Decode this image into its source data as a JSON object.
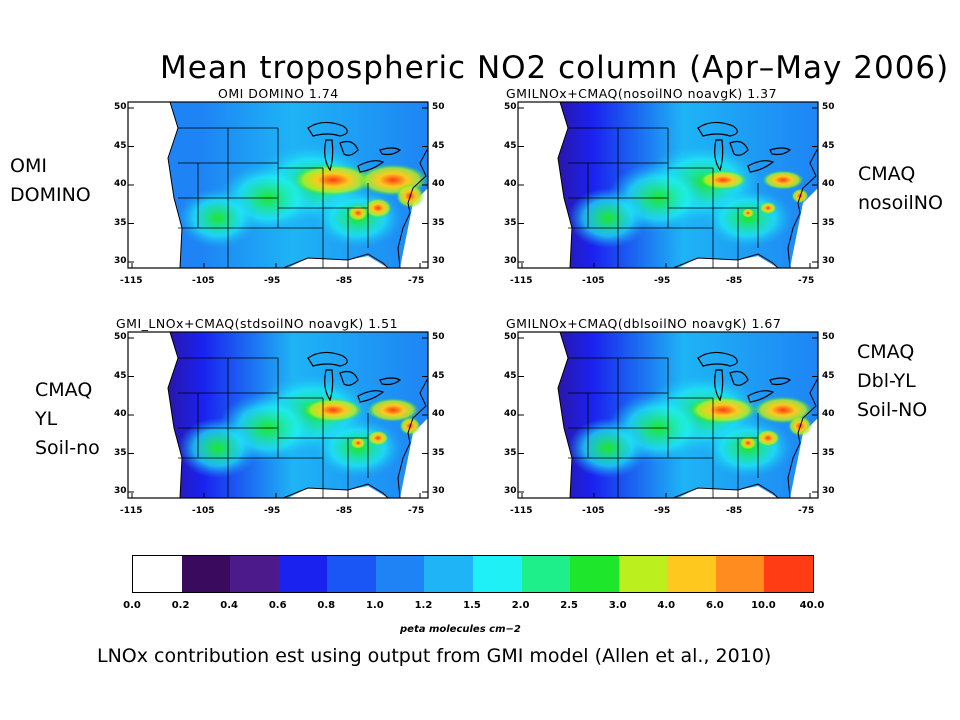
{
  "title": "Mean tropospheric NO2 column (Apr–May 2006)",
  "side_labels": {
    "top_left": "OMI\nDOMINO",
    "top_right": "CMAQ\nnosoilNO",
    "bottom_left": "CMAQ\nYL\nSoil-no",
    "bottom_right": "CMAQ\nDbl-YL\nSoil-NO"
  },
  "panels": [
    {
      "title": "OMI DOMINO  1.74",
      "mean": 1.74
    },
    {
      "title": "GMILNOx+CMAQ(nosoilNO  noavgK)  1.37",
      "mean": 1.37
    },
    {
      "title": "GMI_LNOx+CMAQ(stdsoilNO  noavgK)  1.51",
      "mean": 1.51
    },
    {
      "title": "GMILNOx+CMAQ(dblsoilNO  noavgK)  1.67",
      "mean": 1.67
    }
  ],
  "lat_ticks": [
    "50",
    "45",
    "40",
    "35",
    "30"
  ],
  "lon_ticks": [
    "-115",
    "-105",
    "-95",
    "-85",
    "-75"
  ],
  "colorbar": {
    "ticks": [
      "0.0",
      "0.2",
      "0.4",
      "0.6",
      "0.8",
      "1.0",
      "1.2",
      "1.5",
      "2.0",
      "2.5",
      "3.0",
      "4.0",
      "6.0",
      "10.0",
      "40.0"
    ],
    "colors": [
      "#ffffff",
      "#3a0a5e",
      "#4d1a8c",
      "#1a22f0",
      "#1a55f5",
      "#1e84f5",
      "#1eb4f5",
      "#1ef0f5",
      "#1eef8a",
      "#1ee62a",
      "#bcef1e",
      "#ffc81e",
      "#ff8c1e",
      "#ff3c14"
    ],
    "units": "peta molecules cm−2"
  },
  "caption": "LNOx contribution est using output from GMI model (Allen et al., 2010)"
}
